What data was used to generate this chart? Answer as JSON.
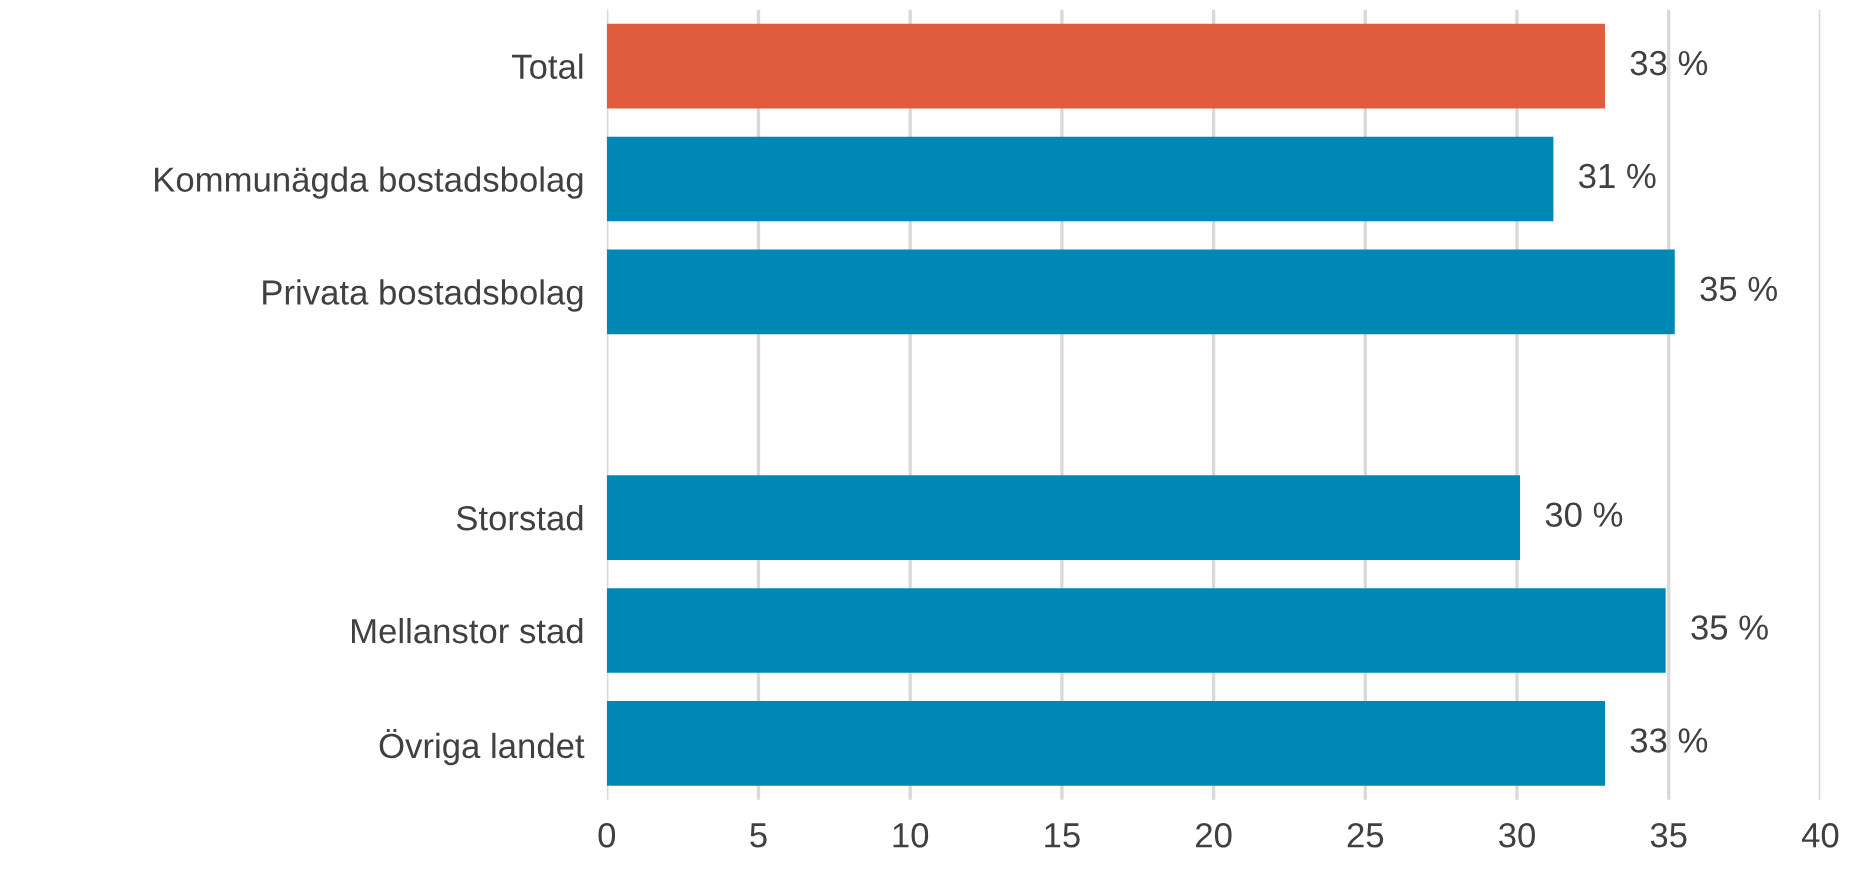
{
  "chart_data": {
    "type": "bar",
    "orientation": "horizontal",
    "categories": [
      "Total",
      "Kommunägda bostadsbolag",
      "Privata bostadsbolag",
      null,
      "Storstad",
      "Mellanstor stad",
      "Övriga landet"
    ],
    "values": [
      32.9,
      31.2,
      35.2,
      null,
      30.1,
      34.9,
      32.9
    ],
    "colors": [
      "#e05c3c",
      "#0088b5",
      "#0088b5",
      null,
      "#0088b5",
      "#0088b5",
      "#0088b5"
    ],
    "value_labels": [
      "33 %",
      "31 %",
      "35 %",
      null,
      "30 %",
      "35 %",
      "33 %"
    ],
    "xlim": [
      0,
      40
    ],
    "xticks": [
      0,
      5,
      10,
      15,
      20,
      25,
      30,
      35,
      40
    ],
    "grid": "x",
    "legend": false
  }
}
